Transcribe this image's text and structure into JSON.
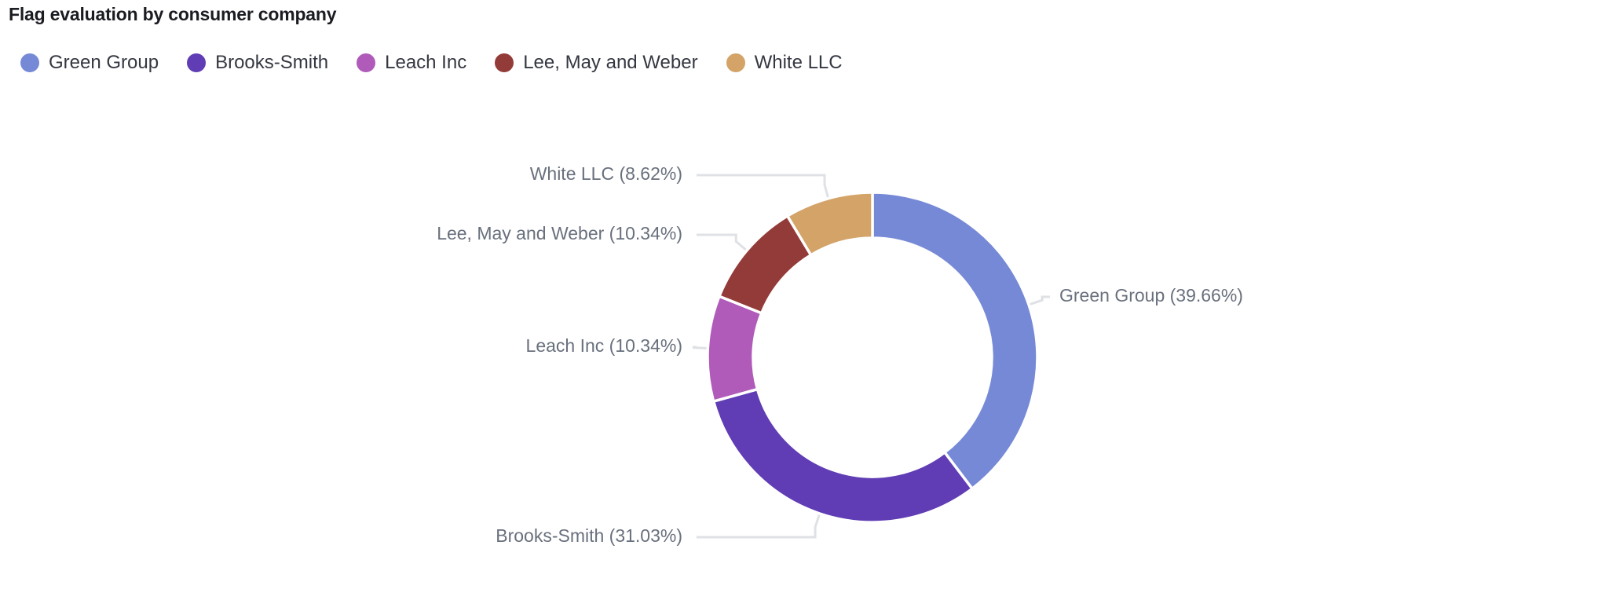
{
  "chart_data": {
    "type": "pie",
    "variant": "donut",
    "title": "Flag evaluation by consumer company",
    "legend_position": "top-left",
    "series": [
      {
        "name": "Green Group",
        "value": 39.66,
        "label": "Green Group (39.66%)",
        "color": "#7689d6"
      },
      {
        "name": "Brooks-Smith",
        "value": 31.03,
        "label": "Brooks-Smith (31.03%)",
        "color": "#603db4"
      },
      {
        "name": "Leach Inc",
        "value": 10.34,
        "label": "Leach Inc (10.34%)",
        "color": "#b05bb9"
      },
      {
        "name": "Lee, May and Weber",
        "value": 10.34,
        "label": "Lee, May and Weber (10.34%)",
        "color": "#933b38"
      },
      {
        "name": "White LLC",
        "value": 8.62,
        "label": "White LLC (8.62%)",
        "color": "#d3a368"
      }
    ]
  }
}
